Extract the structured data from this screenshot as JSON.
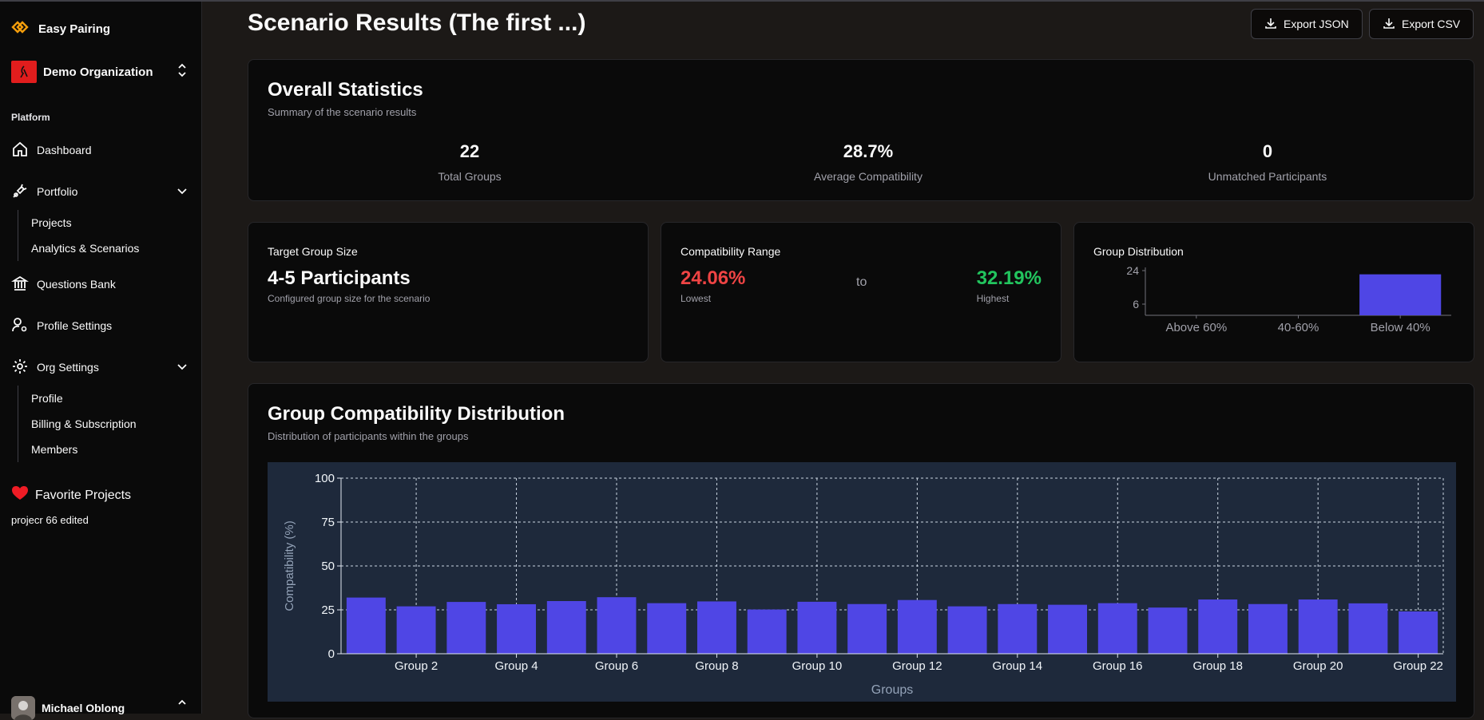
{
  "sidebar": {
    "brand": "Easy Pairing",
    "org_name": "Demo Organization",
    "section": "Platform",
    "items": {
      "dashboard": "Dashboard",
      "portfolio": "Portfolio",
      "projects": "Projects",
      "analytics": "Analytics & Scenarios",
      "questions": "Questions Bank",
      "profile_settings": "Profile Settings",
      "org_settings": "Org Settings",
      "profile": "Profile",
      "billing": "Billing & Subscription",
      "members": "Members"
    },
    "favorites_label": "Favorite Projects",
    "favorite_project": "projecr 66 edited",
    "user_name": "Michael Oblong"
  },
  "header": {
    "title": "Scenario Results (The first ...)",
    "export_json": "Export JSON",
    "export_csv": "Export CSV"
  },
  "overall": {
    "title": "Overall Statistics",
    "subtitle": "Summary of the scenario results",
    "total_groups": "22",
    "total_groups_label": "Total Groups",
    "avg_compat": "28.7%",
    "avg_compat_label": "Average Compatibility",
    "unmatched": "0",
    "unmatched_label": "Unmatched Participants"
  },
  "target": {
    "title": "Target Group Size",
    "value": "4-5 Participants",
    "note": "Configured group size for the scenario"
  },
  "range": {
    "title": "Compatibility Range",
    "low": "24.06%",
    "low_label": "Lowest",
    "to": "to",
    "high": "32.19%",
    "high_label": "Highest",
    "low_color": "#ef4444",
    "high_color": "#22c55e"
  },
  "distribution": {
    "title": "Group Distribution",
    "y_ticks": [
      "24",
      "6"
    ],
    "categories": [
      "Above 60%",
      "40-60%",
      "Below 40%"
    ],
    "values": [
      0,
      0,
      22
    ],
    "bar_color": "#4f46e5"
  },
  "group_chart": {
    "title": "Group Compatibility Distribution",
    "subtitle": "Distribution of participants within the groups"
  },
  "chart_data": {
    "type": "bar",
    "xlabel": "Groups",
    "ylabel": "Compatibility (%)",
    "ylim": [
      0,
      100
    ],
    "y_ticks": [
      0,
      25,
      50,
      75,
      100
    ],
    "grid": true,
    "categories": [
      "Group 1",
      "Group 2",
      "Group 3",
      "Group 4",
      "Group 5",
      "Group 6",
      "Group 7",
      "Group 8",
      "Group 9",
      "Group 10",
      "Group 11",
      "Group 12",
      "Group 13",
      "Group 14",
      "Group 15",
      "Group 16",
      "Group 17",
      "Group 18",
      "Group 19",
      "Group 20",
      "Group 21",
      "Group 22"
    ],
    "shown_tick_labels": [
      "Group 2",
      "Group 4",
      "Group 6",
      "Group 8",
      "Group 10",
      "Group 12",
      "Group 14",
      "Group 16",
      "Group 18",
      "Group 20",
      "Group 22"
    ],
    "values": [
      32.0,
      27.0,
      29.5,
      28.2,
      30.0,
      32.2,
      28.8,
      29.8,
      25.2,
      29.6,
      28.3,
      30.6,
      27.0,
      28.3,
      27.9,
      28.8,
      26.3,
      30.9,
      28.3,
      30.9,
      28.7,
      24.1
    ],
    "bar_color": "#4f46e5",
    "background": "#1e293b"
  }
}
